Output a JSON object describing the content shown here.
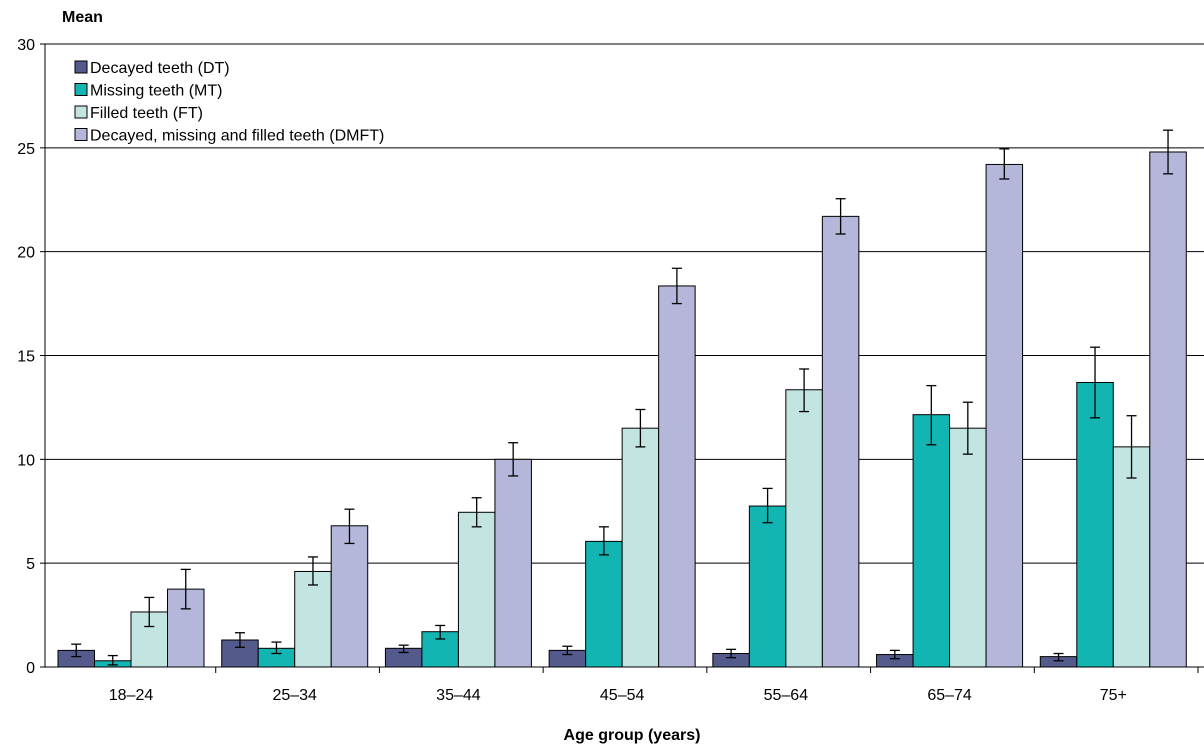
{
  "chart_data": {
    "type": "bar",
    "ylabel": "Mean",
    "xlabel": "Age group (years)",
    "ylim": [
      0,
      30
    ],
    "yticks": [
      0,
      5,
      10,
      15,
      20,
      25,
      30
    ],
    "categories": [
      "18–24",
      "25–34",
      "35–44",
      "45–54",
      "55–64",
      "65–74",
      "75+"
    ],
    "legend_position": "top-left",
    "grid": "horizontal",
    "error_bars": true,
    "series": [
      {
        "name": "Decayed teeth (DT)",
        "color": "#555a8c",
        "values": [
          0.8,
          1.3,
          0.9,
          0.8,
          0.65,
          0.6,
          0.5
        ],
        "err_low": [
          0.5,
          0.95,
          0.7,
          0.6,
          0.45,
          0.4,
          0.3
        ],
        "err_high": [
          1.1,
          1.65,
          1.05,
          1.0,
          0.85,
          0.8,
          0.65
        ]
      },
      {
        "name": "Missing teeth (MT)",
        "color": "#12b5b1",
        "values": [
          0.3,
          0.9,
          1.7,
          6.05,
          7.75,
          12.15,
          13.7
        ],
        "err_low": [
          0.1,
          0.65,
          1.35,
          5.4,
          6.95,
          10.7,
          12.0
        ],
        "err_high": [
          0.55,
          1.2,
          2.0,
          6.75,
          8.6,
          13.55,
          15.4
        ]
      },
      {
        "name": "Filled teeth (FT)",
        "color": "#c2e5e2",
        "values": [
          2.65,
          4.6,
          7.45,
          11.5,
          13.35,
          11.5,
          10.6
        ],
        "err_low": [
          1.95,
          3.95,
          6.75,
          10.6,
          12.3,
          10.25,
          9.1
        ],
        "err_high": [
          3.35,
          5.3,
          8.15,
          12.4,
          14.35,
          12.75,
          12.1
        ]
      },
      {
        "name": "Decayed, missing and filled teeth (DMFT)",
        "color": "#b4b6da",
        "values": [
          3.75,
          6.8,
          10.0,
          18.35,
          21.7,
          24.2,
          24.8
        ],
        "err_low": [
          2.8,
          5.95,
          9.2,
          17.5,
          20.85,
          23.5,
          23.75
        ],
        "err_high": [
          4.7,
          7.6,
          10.8,
          19.2,
          22.55,
          24.95,
          25.85
        ]
      }
    ]
  }
}
